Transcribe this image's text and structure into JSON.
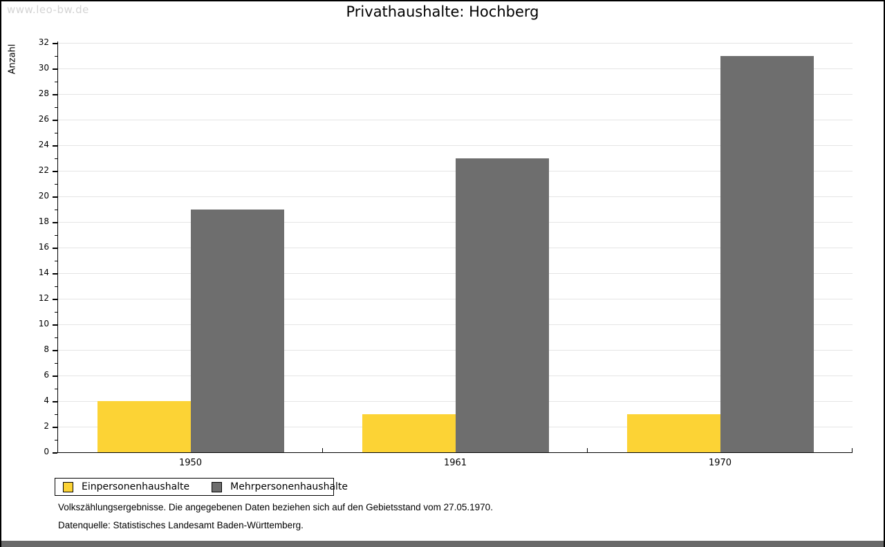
{
  "watermark": "www.leo-bw.de",
  "title": "Privathaushalte: Hochberg",
  "chart_data": {
    "type": "bar",
    "categories": [
      "1950",
      "1961",
      "1970"
    ],
    "series": [
      {
        "name": "Einpersonenhaushalte",
        "values": [
          4,
          3,
          3
        ],
        "color": "#fcd335"
      },
      {
        "name": "Mehrpersonenhaushalte",
        "values": [
          19,
          23,
          31
        ],
        "color": "#6e6e6e"
      }
    ],
    "xlabel": "",
    "ylabel": "Anzahl",
    "ylim": [
      0,
      32
    ],
    "ytick_step": 2,
    "grid": true,
    "legend_position": "bottom-left"
  },
  "footnotes": [
    "Volkszählungsergebnisse. Die angegebenen Daten beziehen sich auf den Gebietsstand vom 27.05.1970.",
    "Datenquelle: Statistisches Landesamt Baden-Württemberg."
  ],
  "colors": {
    "bar_single_person": "#fcd335",
    "bar_multi_person": "#6e6e6e",
    "gridline": "#e4e4e4",
    "axis": "#000000",
    "watermark_text": "#d4d4d4",
    "footer_strip": "#696969"
  }
}
